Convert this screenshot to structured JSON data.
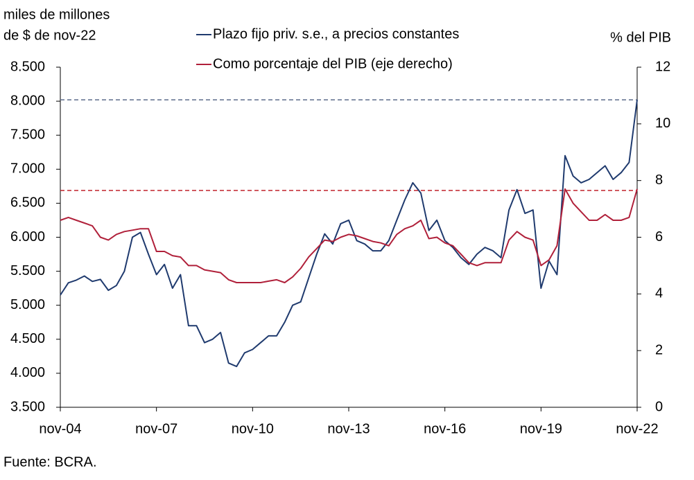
{
  "chart_data": {
    "type": "line",
    "ylabel": [
      "miles de millones",
      "de $ de nov-22"
    ],
    "y2label": "% del PIB",
    "note": "Fuente: BCRA.",
    "categories": [
      "nov-04",
      null,
      null,
      null,
      null,
      null,
      null,
      null,
      null,
      null,
      null,
      null,
      "nov-07",
      null,
      null,
      null,
      null,
      null,
      null,
      null,
      null,
      null,
      null,
      null,
      "nov-10",
      null,
      null,
      null,
      null,
      null,
      null,
      null,
      null,
      null,
      null,
      null,
      "nov-13",
      null,
      null,
      null,
      null,
      null,
      null,
      null,
      null,
      null,
      null,
      null,
      "nov-16",
      null,
      null,
      null,
      null,
      null,
      null,
      null,
      null,
      null,
      null,
      null,
      "nov-19",
      null,
      null,
      null,
      null,
      null,
      null,
      null,
      null,
      null,
      null,
      null,
      "nov-22"
    ],
    "series": [
      {
        "name": "Plazo fijo priv. s.e., a precios constantes",
        "color": "#1f3a6e",
        "axis": "y",
        "values": [
          5150,
          5330,
          5370,
          5430,
          5350,
          5380,
          5220,
          5290,
          5500,
          6000,
          6070,
          5750,
          5450,
          5600,
          5250,
          5450,
          4700,
          4700,
          4450,
          4500,
          4600,
          4150,
          4100,
          4300,
          4350,
          4450,
          4550,
          4550,
          4750,
          5000,
          5050,
          5400,
          5750,
          6050,
          5900,
          6200,
          6250,
          5950,
          5900,
          5800,
          5800,
          5950,
          6250,
          6550,
          6800,
          6650,
          6100,
          6250,
          5950,
          5850,
          5700,
          5600,
          5750,
          5850,
          5800,
          5700,
          6400,
          6700,
          6350,
          6400,
          5250,
          5650,
          5450,
          7200,
          6900,
          6800,
          6850,
          6950,
          7050,
          6850,
          6950,
          7100,
          8020
        ]
      },
      {
        "name": "Como porcentaje del PIB (eje derecho)",
        "color": "#b0203a",
        "axis": "y2",
        "values": [
          6.6,
          6.7,
          6.6,
          6.5,
          6.4,
          6.0,
          5.9,
          6.1,
          6.2,
          6.25,
          6.3,
          6.3,
          5.5,
          5.5,
          5.35,
          5.3,
          5.0,
          5.0,
          4.85,
          4.8,
          4.75,
          4.5,
          4.4,
          4.4,
          4.4,
          4.4,
          4.45,
          4.5,
          4.4,
          4.6,
          4.9,
          5.3,
          5.6,
          5.9,
          5.85,
          6.0,
          6.1,
          6.05,
          5.95,
          5.85,
          5.8,
          5.7,
          6.1,
          6.3,
          6.4,
          6.6,
          5.95,
          6.0,
          5.8,
          5.7,
          5.4,
          5.1,
          5.0,
          5.1,
          5.1,
          5.1,
          5.9,
          6.2,
          6.0,
          5.9,
          5.0,
          5.2,
          5.7,
          7.7,
          7.2,
          6.9,
          6.6,
          6.6,
          6.8,
          6.6,
          6.6,
          6.7,
          7.7
        ]
      }
    ],
    "hlines": [
      {
        "value": 8020,
        "axis": "y",
        "color": "#5a6a8a"
      },
      {
        "value": 7.65,
        "axis": "y2",
        "color": "#c0202a"
      }
    ],
    "ylim": [
      3500,
      8500
    ],
    "yticks": [
      {
        "value": 3500,
        "label": "3.500"
      },
      {
        "value": 4000,
        "label": "4.000"
      },
      {
        "value": 4500,
        "label": "4.500"
      },
      {
        "value": 5000,
        "label": "5.000"
      },
      {
        "value": 5500,
        "label": "5.500"
      },
      {
        "value": 6000,
        "label": "6.000"
      },
      {
        "value": 6500,
        "label": "6.500"
      },
      {
        "value": 7000,
        "label": "7.000"
      },
      {
        "value": 7500,
        "label": "7.500"
      },
      {
        "value": 8000,
        "label": "8.000"
      },
      {
        "value": 8500,
        "label": "8.500"
      }
    ],
    "y2lim": [
      0,
      12
    ],
    "y2ticks": [
      0,
      2,
      4,
      6,
      8,
      10,
      12
    ]
  }
}
